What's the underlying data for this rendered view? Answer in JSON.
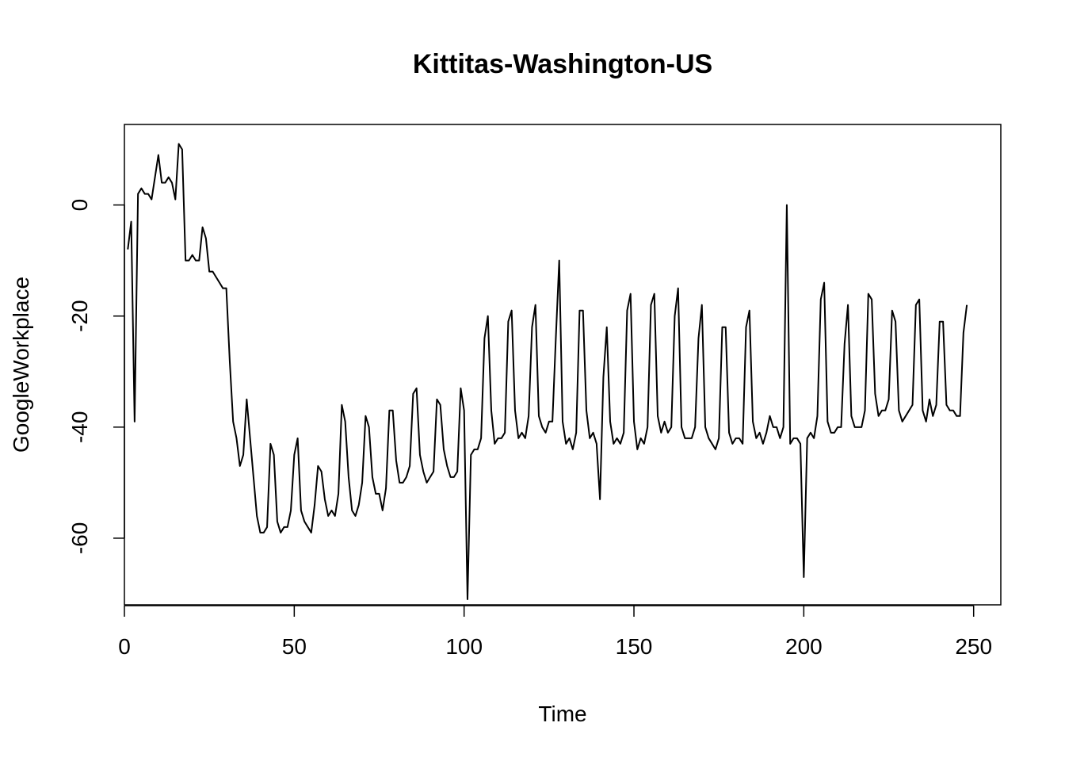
{
  "chart_data": {
    "type": "line",
    "title": "Kittitas-Washington-US",
    "xlabel": "Time",
    "ylabel": "GoogleWorkplace",
    "xlim": [
      0,
      258
    ],
    "ylim": [
      -72,
      14.5
    ],
    "xticks": [
      0,
      50,
      100,
      150,
      200,
      250
    ],
    "yticks": [
      0,
      -20,
      -40,
      -60
    ],
    "line_color": "#000000",
    "series": [
      {
        "values": [
          -8,
          -3,
          -39,
          2,
          3,
          2,
          2,
          1,
          5,
          9,
          4,
          4,
          5,
          4,
          1,
          11,
          10,
          -10,
          -10,
          -9,
          -10,
          -10,
          -4,
          -6,
          -12,
          -12,
          -13,
          -14,
          -15,
          -15,
          -28,
          -39,
          -42,
          -47,
          -45,
          -35,
          -42,
          -49,
          -56,
          -59,
          -59,
          -58,
          -43,
          -45,
          -57,
          -59,
          -58,
          -58,
          -55,
          -45,
          -42,
          -55,
          -57,
          -58,
          -59,
          -54,
          -47,
          -48,
          -53,
          -56,
          -55,
          -56,
          -52,
          -36,
          -39,
          -49,
          -55,
          -56,
          -54,
          -50,
          -38,
          -40,
          -49,
          -52,
          -52,
          -55,
          -51,
          -37,
          -37,
          -46,
          -50,
          -50,
          -49,
          -47,
          -34,
          -33,
          -45,
          -48,
          -50,
          -49,
          -48,
          -35,
          -36,
          -44,
          -47,
          -49,
          -49,
          -48,
          -33,
          -37,
          -71,
          -45,
          -44,
          -44,
          -42,
          -24,
          -20,
          -37,
          -43,
          -42,
          -42,
          -41,
          -21,
          -19,
          -37,
          -42,
          -41,
          -42,
          -38,
          -22,
          -18,
          -38,
          -40,
          -41,
          -39,
          -39,
          -24,
          -10,
          -39,
          -43,
          -42,
          -44,
          -41,
          -19,
          -19,
          -37,
          -42,
          -41,
          -43,
          -53,
          -31,
          -22,
          -39,
          -43,
          -42,
          -43,
          -41,
          -19,
          -16,
          -39,
          -44,
          -42,
          -43,
          -40,
          -18,
          -16,
          -38,
          -41,
          -39,
          -41,
          -40,
          -20,
          -15,
          -40,
          -42,
          -42,
          -42,
          -40,
          -24,
          -18,
          -40,
          -42,
          -43,
          -44,
          -42,
          -22,
          -22,
          -41,
          -43,
          -42,
          -42,
          -43,
          -22,
          -19,
          -39,
          -42,
          -41,
          -43,
          -41,
          -38,
          -40,
          -40,
          -42,
          -40,
          0,
          -43,
          -42,
          -42,
          -43,
          -67,
          -42,
          -41,
          -42,
          -38,
          -17,
          -14,
          -39,
          -41,
          -41,
          -40,
          -40,
          -25,
          -18,
          -38,
          -40,
          -40,
          -40,
          -37,
          -16,
          -17,
          -34,
          -38,
          -37,
          -37,
          -35,
          -19,
          -21,
          -37,
          -39,
          -38,
          -37,
          -36,
          -18,
          -17,
          -37,
          -39,
          -35,
          -38,
          -36,
          -21,
          -21,
          -36,
          -37,
          -37,
          -38,
          -38,
          -23,
          -18
        ]
      }
    ]
  }
}
